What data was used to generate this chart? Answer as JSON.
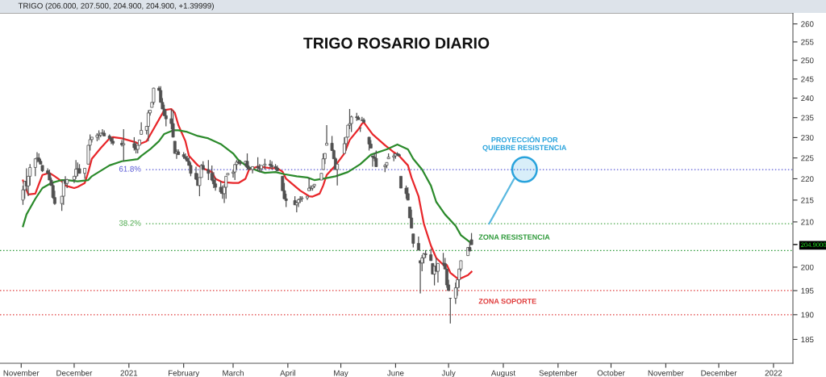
{
  "chart_data": {
    "type": "candlestick",
    "title": "TRIGO ROSARIO DIARIO",
    "subtitle": "TRIGO (206.000, 207.500, 204.900, 204.900, +1.39999)",
    "color": "#505050",
    "x": [
      "2020-11-02",
      "2020-11-03",
      "2020-11-04",
      "2020-11-05",
      "2020-11-06",
      "2020-11-09",
      "2020-11-10",
      "2020-11-11",
      "2020-11-12",
      "2020-11-13",
      "2020-11-16",
      "2020-11-17",
      "2020-11-18",
      "2020-11-19",
      "2020-11-20",
      "2020-11-24",
      "2020-11-25",
      "2020-11-26",
      "2020-11-27",
      "2020-12-01",
      "2020-12-02",
      "2020-12-03",
      "2020-12-04",
      "2020-12-07",
      "2020-12-09",
      "2020-12-10",
      "2020-12-11",
      "2020-12-14",
      "2020-12-15",
      "2020-12-16",
      "2020-12-17",
      "2020-12-18",
      "2020-12-21",
      "2020-12-22",
      "2020-12-23",
      "2020-12-28",
      "2020-12-29",
      "2021-01-04",
      "2021-01-05",
      "2021-01-06",
      "2021-01-07",
      "2021-01-08",
      "2021-01-11",
      "2021-01-12",
      "2021-01-13",
      "2021-01-14",
      "2021-01-15",
      "2021-01-18",
      "2021-01-19",
      "2021-01-20",
      "2021-01-21",
      "2021-01-22",
      "2021-01-25",
      "2021-01-26",
      "2021-01-27",
      "2021-01-28",
      "2021-01-29",
      "2021-02-01",
      "2021-02-02",
      "2021-02-03",
      "2021-02-04",
      "2021-02-05",
      "2021-02-08",
      "2021-02-09",
      "2021-02-10",
      "2021-02-11",
      "2021-02-12",
      "2021-02-15",
      "2021-02-17",
      "2021-02-18",
      "2021-02-19",
      "2021-02-22",
      "2021-02-23",
      "2021-02-24",
      "2021-02-25",
      "2021-02-26",
      "2021-03-01",
      "2021-03-02",
      "2021-03-03",
      "2021-03-04",
      "2021-03-05",
      "2021-03-08",
      "2021-03-09",
      "2021-03-10",
      "2021-03-12",
      "2021-03-15",
      "2021-03-16",
      "2021-03-17",
      "2021-03-19",
      "2021-03-22",
      "2021-03-23",
      "2021-03-25",
      "2021-03-26",
      "2021-03-29",
      "2021-03-30",
      "2021-03-31",
      "2021-04-05",
      "2021-04-06",
      "2021-04-07",
      "2021-04-08",
      "2021-04-09",
      "2021-04-12",
      "2021-04-13",
      "2021-04-14",
      "2021-04-15",
      "2021-04-16",
      "2021-04-20",
      "2021-04-21",
      "2021-04-22",
      "2021-04-23",
      "2021-04-26",
      "2021-04-27",
      "2021-04-28",
      "2021-04-29",
      "2021-05-03",
      "2021-05-04",
      "2021-05-05",
      "2021-05-06",
      "2021-05-07",
      "2021-05-10",
      "2021-05-11",
      "2021-05-12",
      "2021-05-13",
      "2021-05-14",
      "2021-05-17",
      "2021-05-18",
      "2021-05-19",
      "2021-05-20",
      "2021-05-21",
      "2021-05-26",
      "2021-05-27",
      "2021-05-28",
      "2021-05-31",
      "2021-06-01",
      "2021-06-02",
      "2021-06-03",
      "2021-06-04",
      "2021-06-07",
      "2021-06-08",
      "2021-06-09",
      "2021-06-10",
      "2021-06-11",
      "2021-06-14",
      "2021-06-15",
      "2021-06-16",
      "2021-06-17",
      "2021-06-18",
      "2021-06-21",
      "2021-06-22",
      "2021-06-23",
      "2021-06-24",
      "2021-06-25",
      "2021-06-28",
      "2021-06-29",
      "2021-06-30",
      "2021-07-01",
      "2021-07-02",
      "2021-07-05",
      "2021-07-06",
      "2021-07-07",
      "2021-07-08",
      "2021-07-12",
      "2021-07-13",
      "2021-07-14"
    ],
    "ohlc": [
      [
        215.0,
        218.4,
        213.9,
        217.4
      ],
      [
        217.4,
        219.4,
        215.3,
        219.4
      ],
      [
        219.4,
        222.5,
        217.2,
        218.3
      ],
      [
        218.3,
        220.6,
        215.9,
        220.6
      ],
      [
        220.6,
        223.5,
        218.4,
        222.7
      ],
      [
        222.7,
        224.8,
        220.6,
        224.8
      ],
      [
        224.8,
        226.4,
        223.9,
        225.0
      ],
      [
        225.0,
        226.1,
        223.9,
        224.2
      ],
      [
        224.2,
        224.8,
        223.5,
        223.5
      ],
      [
        223.2,
        223.2,
        221.6,
        221.9
      ],
      [
        221.9,
        222.5,
        221.3,
        221.3
      ],
      [
        221.3,
        222.2,
        219.7,
        219.7
      ],
      [
        219.7,
        220.3,
        218.4,
        218.4
      ],
      [
        218.4,
        219.0,
        215.3,
        215.6
      ],
      [
        215.6,
        217.2,
        213.9,
        214.2
      ],
      [
        214.2,
        215.9,
        212.5,
        215.9
      ],
      [
        215.9,
        219.7,
        213.9,
        219.5
      ],
      [
        219.5,
        220.6,
        218.4,
        218.9
      ],
      [
        218.9,
        220.0,
        217.8,
        219.8
      ],
      [
        219.8,
        220.6,
        219.0,
        220.6
      ],
      [
        220.6,
        224.5,
        220.0,
        222.3
      ],
      [
        222.3,
        223.9,
        220.6,
        222.4
      ],
      [
        222.4,
        223.5,
        221.3,
        221.3
      ],
      [
        221.3,
        222.5,
        220.0,
        222.5
      ],
      [
        223.5,
        228.1,
        223.5,
        228.1
      ],
      [
        228.1,
        230.8,
        226.8,
        229.5
      ],
      [
        229.5,
        230.1,
        228.8,
        230.1
      ],
      [
        230.1,
        231.1,
        229.1,
        230.6
      ],
      [
        230.6,
        231.8,
        229.4,
        230.6
      ],
      [
        230.6,
        231.1,
        230.1,
        231.1
      ],
      [
        231.1,
        232.1,
        231.1,
        231.1
      ],
      [
        231.1,
        231.8,
        230.4,
        230.4
      ],
      [
        230.4,
        230.8,
        229.8,
        229.8
      ],
      [
        229.8,
        230.1,
        228.4,
        229.1
      ],
      [
        229.1,
        230.1,
        228.1,
        228.6
      ],
      [
        228.6,
        229.4,
        227.8,
        228.2
      ],
      [
        228.2,
        232.1,
        224.2,
        228.5
      ],
      [
        228.5,
        230.1,
        226.8,
        227.5
      ],
      [
        227.5,
        228.8,
        226.1,
        227.1
      ],
      [
        227.1,
        228.1,
        226.1,
        228.1
      ],
      [
        228.1,
        229.4,
        228.1,
        229.4
      ],
      [
        230.8,
        233.8,
        230.8,
        231.8
      ],
      [
        231.8,
        232.8,
        230.8,
        232.8
      ],
      [
        232.8,
        236.9,
        229.1,
        236.2
      ],
      [
        236.2,
        236.9,
        235.5,
        236.9
      ],
      [
        237.6,
        238.9,
        237.6,
        238.9
      ],
      [
        238.9,
        242.7,
        238.3,
        242.6
      ],
      [
        242.6,
        243.1,
        242.0,
        242.0
      ],
      [
        242.0,
        243.1,
        238.9,
        238.9
      ],
      [
        238.9,
        240.0,
        237.2,
        237.2
      ],
      [
        237.2,
        238.3,
        235.5,
        235.5
      ],
      [
        235.5,
        236.9,
        232.8,
        234.7
      ],
      [
        234.7,
        237.2,
        232.1,
        233.5
      ],
      [
        233.5,
        236.9,
        230.1,
        230.1
      ],
      [
        229.1,
        229.1,
        226.1,
        226.1
      ],
      [
        226.1,
        227.1,
        224.8,
        226.5
      ],
      [
        226.5,
        227.1,
        225.8,
        225.8
      ],
      [
        225.8,
        226.4,
        224.8,
        225.3
      ],
      [
        225.3,
        226.1,
        224.5,
        224.9
      ],
      [
        224.9,
        225.5,
        224.2,
        224.2
      ],
      [
        224.2,
        225.2,
        223.2,
        223.2
      ],
      [
        223.2,
        223.9,
        220.6,
        221.3
      ],
      [
        221.3,
        222.9,
        219.7,
        219.9
      ],
      [
        219.9,
        221.3,
        218.4,
        218.4
      ],
      [
        218.4,
        220.3,
        215.9,
        220.3
      ],
      [
        220.3,
        223.5,
        220.3,
        223.2
      ],
      [
        223.2,
        224.2,
        222.2,
        222.2
      ],
      [
        222.2,
        224.5,
        219.7,
        221.3
      ],
      [
        221.3,
        223.2,
        219.4,
        219.7
      ],
      [
        219.7,
        221.6,
        217.8,
        218.8
      ],
      [
        218.8,
        220.3,
        217.2,
        218.0
      ],
      [
        218.0,
        219.4,
        216.5,
        216.9
      ],
      [
        216.9,
        218.4,
        215.3,
        216.5
      ],
      [
        216.5,
        218.7,
        214.3,
        218.0
      ],
      [
        218.0,
        220.6,
        215.3,
        220.6
      ],
      [
        220.9,
        221.3,
        220.9,
        221.3
      ],
      [
        221.3,
        222.2,
        220.3,
        221.6
      ],
      [
        221.6,
        223.5,
        219.7,
        223.4
      ],
      [
        223.4,
        224.5,
        222.2,
        224.0
      ],
      [
        224.0,
        224.5,
        223.5,
        223.9
      ],
      [
        223.9,
        224.5,
        223.2,
        223.6
      ],
      [
        223.6,
        224.2,
        222.9,
        224.2
      ],
      [
        224.2,
        226.1,
        222.2,
        222.7
      ],
      [
        222.7,
        223.2,
        222.2,
        222.2
      ],
      [
        222.2,
        222.9,
        221.3,
        222.9
      ],
      [
        222.9,
        225.2,
        221.9,
        222.6
      ],
      [
        222.6,
        223.5,
        221.6,
        222.4
      ],
      [
        222.4,
        223.2,
        221.6,
        223.2
      ],
      [
        223.2,
        224.8,
        222.2,
        223.5
      ],
      [
        223.5,
        224.5,
        222.5,
        223.2
      ],
      [
        223.2,
        224.2,
        222.2,
        222.9
      ],
      [
        222.9,
        223.5,
        222.2,
        222.6
      ],
      [
        222.6,
        223.2,
        221.9,
        221.9
      ],
      [
        220.6,
        220.6,
        217.2,
        217.2
      ],
      [
        217.2,
        219.0,
        215.3,
        215.3
      ],
      [
        215.3,
        216.5,
        213.4,
        214.9
      ],
      [
        214.9,
        215.9,
        213.9,
        213.9
      ],
      [
        213.9,
        214.6,
        212.2,
        214.4
      ],
      [
        214.4,
        215.3,
        213.4,
        215.1
      ],
      [
        215.1,
        215.9,
        214.3,
        215.3
      ],
      [
        215.3,
        215.9,
        214.6,
        215.5
      ],
      [
        215.5,
        215.9,
        215.0,
        215.9
      ],
      [
        217.2,
        220.3,
        217.2,
        217.8
      ],
      [
        217.8,
        218.4,
        217.2,
        217.8
      ],
      [
        217.8,
        218.4,
        217.2,
        218.3
      ],
      [
        218.3,
        218.7,
        217.8,
        218.7
      ],
      [
        219.7,
        221.3,
        219.7,
        221.3
      ],
      [
        222.2,
        226.1,
        222.2,
        224.8
      ],
      [
        224.8,
        226.1,
        223.5,
        226.1
      ],
      [
        228.1,
        233.1,
        228.1,
        228.6
      ],
      [
        228.6,
        230.4,
        226.8,
        226.8
      ],
      [
        226.8,
        227.1,
        224.8,
        224.8
      ],
      [
        224.8,
        225.2,
        222.2,
        222.2
      ],
      [
        222.2,
        223.5,
        218.4,
        223.5
      ],
      [
        226.1,
        230.1,
        226.1,
        228.5
      ],
      [
        228.5,
        230.1,
        226.8,
        230.1
      ],
      [
        230.1,
        233.1,
        230.1,
        233.1
      ],
      [
        233.1,
        237.2,
        232.1,
        233.5
      ],
      [
        233.5,
        235.5,
        231.4,
        235.2
      ],
      [
        235.2,
        236.2,
        234.2,
        235.0
      ],
      [
        235.0,
        235.5,
        234.5,
        234.5
      ],
      [
        232.4,
        232.4,
        231.4,
        232.4
      ],
      [
        234.2,
        235.2,
        234.2,
        234.4
      ],
      [
        234.4,
        234.9,
        233.8,
        233.8
      ],
      [
        230.1,
        230.1,
        226.8,
        228.4
      ],
      [
        228.4,
        229.4,
        227.4,
        227.4
      ],
      [
        225.5,
        225.5,
        222.9,
        225.2
      ],
      [
        225.2,
        226.1,
        224.2,
        224.9
      ],
      [
        224.9,
        226.8,
        222.9,
        222.9
      ],
      [
        222.9,
        223.5,
        221.6,
        223.2
      ],
      [
        223.2,
        223.9,
        222.5,
        223.9
      ],
      [
        224.8,
        226.1,
        224.8,
        225.2
      ],
      [
        225.2,
        226.1,
        224.2,
        225.5
      ],
      [
        225.5,
        226.1,
        224.8,
        226.0
      ],
      [
        226.0,
        226.4,
        225.5,
        225.8
      ],
      [
        225.8,
        226.1,
        225.5,
        225.5
      ],
      [
        220.6,
        220.6,
        217.8,
        217.8
      ],
      [
        217.8,
        218.4,
        215.3,
        216.5
      ],
      [
        216.5,
        218.0,
        215.0,
        215.0
      ],
      [
        213.4,
        213.4,
        210.9,
        210.9
      ],
      [
        210.9,
        212.8,
        208.6,
        208.6
      ],
      [
        207.3,
        207.3,
        204.3,
        205.2
      ],
      [
        205.2,
        206.7,
        203.7,
        203.7
      ],
      [
        201.4,
        201.4,
        194.4,
        200.9
      ],
      [
        200.9,
        202.6,
        199.1,
        202.0
      ],
      [
        202.0,
        203.1,
        200.8,
        202.9
      ],
      [
        202.9,
        203.7,
        202.0,
        202.7
      ],
      [
        202.7,
        204.0,
        201.4,
        201.4
      ],
      [
        200.8,
        200.8,
        198.5,
        198.5
      ],
      [
        198.5,
        200.2,
        196.1,
        200.2
      ],
      [
        200.2,
        202.0,
        199.1,
        199.1
      ],
      [
        199.1,
        200.8,
        196.7,
        200.8
      ],
      [
        200.8,
        203.1,
        200.2,
        200.8
      ],
      [
        200.8,
        202.0,
        199.6,
        199.6
      ],
      [
        199.6,
        199.6,
        195.6,
        196.2
      ],
      [
        196.2,
        197.3,
        195.0,
        195.0
      ],
      [
        193.4,
        193.4,
        188.2,
        193.4
      ],
      [
        193.4,
        196.7,
        192.2,
        195.6
      ],
      [
        195.6,
        197.3,
        193.9,
        197.3
      ],
      [
        197.3,
        199.6,
        195.6,
        199.6
      ],
      [
        199.6,
        201.4,
        199.1,
        201.4
      ],
      [
        202.5,
        204.3,
        202.5,
        204.3
      ],
      [
        204.3,
        205.5,
        203.5,
        203.5
      ],
      [
        206.0,
        207.5,
        204.9,
        204.9
      ]
    ],
    "series": [
      {
        "type": "line",
        "color": "#e8262a",
        "x": [
          "2020-11-02",
          "2020-11-03",
          "2020-11-05",
          "2020-11-09",
          "2020-11-11",
          "2020-11-13",
          "2020-11-17",
          "2020-11-20",
          "2020-11-24",
          "2020-11-26",
          "2020-12-01",
          "2020-12-03",
          "2020-12-07",
          "2020-12-09",
          "2020-12-11",
          "2020-12-16",
          "2020-12-21",
          "2020-12-23",
          "2020-12-28",
          "2021-01-05",
          "2021-01-07",
          "2021-01-11",
          "2021-01-14",
          "2021-01-18",
          "2021-01-21",
          "2021-01-25",
          "2021-01-27",
          "2021-01-29",
          "2021-02-02",
          "2021-02-04",
          "2021-02-09",
          "2021-02-12",
          "2021-02-17",
          "2021-02-19",
          "2021-02-23",
          "2021-03-01",
          "2021-03-04",
          "2021-03-08",
          "2021-03-10",
          "2021-03-15",
          "2021-03-19",
          "2021-03-23",
          "2021-03-26",
          "2021-03-29",
          "2021-03-31",
          "2021-04-08",
          "2021-04-13",
          "2021-04-15",
          "2021-04-19",
          "2021-04-21",
          "2021-04-23",
          "2021-04-28",
          "2021-05-03",
          "2021-05-06",
          "2021-05-11",
          "2021-05-13",
          "2021-05-14",
          "2021-05-19",
          "2021-05-26",
          "2021-05-31",
          "2021-06-03",
          "2021-06-08",
          "2021-06-10",
          "2021-06-14",
          "2021-06-17",
          "2021-06-21",
          "2021-06-24",
          "2021-06-28",
          "2021-06-30",
          "2021-07-02",
          "2021-07-06",
          "2021-07-08",
          "2021-07-12",
          "2021-07-14"
        ],
        "values": [
          219.6,
          218.4,
          216.3,
          216.5,
          218.7,
          220.9,
          221.4,
          220.6,
          219.4,
          218.4,
          217.8,
          218.1,
          219.0,
          221.6,
          224.8,
          227.4,
          229.8,
          230.1,
          229.8,
          228.8,
          228.4,
          229.1,
          231.4,
          234.5,
          236.9,
          237.2,
          236.2,
          233.1,
          229.1,
          225.5,
          223.2,
          222.5,
          221.6,
          220.0,
          219.2,
          219.0,
          219.0,
          220.0,
          222.2,
          222.9,
          222.7,
          222.5,
          222.5,
          221.7,
          220.0,
          217.2,
          215.9,
          215.8,
          216.5,
          218.4,
          220.9,
          223.2,
          226.1,
          229.4,
          232.1,
          233.5,
          233.8,
          230.8,
          228.1,
          226.4,
          225.5,
          223.2,
          220.3,
          215.9,
          209.6,
          204.7,
          202.0,
          200.5,
          200.5,
          198.8,
          197.6,
          197.6,
          198.3,
          199.0
        ]
      },
      {
        "type": "line",
        "color": "#2b8a2b",
        "x": [
          "2020-11-02",
          "2020-11-04",
          "2020-11-09",
          "2020-11-13",
          "2020-11-18",
          "2020-11-24",
          "2020-11-27",
          "2020-12-03",
          "2020-12-09",
          "2020-12-11",
          "2020-12-16",
          "2020-12-21",
          "2020-12-28",
          "2021-01-06",
          "2021-01-08",
          "2021-01-13",
          "2021-01-18",
          "2021-01-21",
          "2021-01-26",
          "2021-01-29",
          "2021-02-03",
          "2021-02-09",
          "2021-02-15",
          "2021-02-22",
          "2021-03-01",
          "2021-03-04",
          "2021-03-09",
          "2021-03-15",
          "2021-03-19",
          "2021-03-25",
          "2021-03-30",
          "2021-04-06",
          "2021-04-12",
          "2021-04-16",
          "2021-04-21",
          "2021-04-28",
          "2021-05-05",
          "2021-05-12",
          "2021-05-18",
          "2021-05-27",
          "2021-06-02",
          "2021-06-08",
          "2021-06-11",
          "2021-06-16",
          "2021-06-21",
          "2021-06-24",
          "2021-06-29",
          "2021-07-05",
          "2021-07-08",
          "2021-07-14"
        ],
        "values": [
          209.0,
          211.7,
          215.3,
          217.8,
          219.0,
          219.7,
          219.7,
          219.4,
          219.7,
          220.6,
          221.9,
          223.2,
          224.2,
          224.7,
          225.5,
          227.1,
          229.1,
          230.9,
          231.8,
          231.8,
          231.4,
          230.4,
          229.8,
          228.4,
          226.1,
          224.5,
          222.9,
          221.9,
          221.4,
          221.6,
          221.1,
          220.6,
          220.3,
          219.7,
          220.0,
          220.6,
          221.6,
          223.5,
          225.8,
          227.1,
          228.3,
          227.1,
          224.8,
          222.2,
          218.4,
          214.6,
          211.7,
          209.1,
          207.0,
          205.2
        ]
      },
      {
        "type": "line",
        "color": "#5ab8e0",
        "x": [
          "2021-07-24",
          "2021-08-07"
        ],
        "values": [
          209.6,
          219.9
        ]
      },
      {
        "type": "scatter",
        "name": "PROYECCIÓN POR\nQUIEBRE RESISTENCIA",
        "color": "#29a3dc",
        "marker": "circle",
        "x": [
          "2021-08-13"
        ],
        "values": [
          222.2
        ]
      }
    ],
    "xlim": [
      "2020-10-20",
      "2022-01-12"
    ],
    "xticks": [
      {
        "value": "2020-11-01",
        "label": "November"
      },
      {
        "value": "2020-12-01",
        "label": "December"
      },
      {
        "value": "2021-01-01",
        "label": "2021"
      },
      {
        "value": "2021-02-01",
        "label": "February"
      },
      {
        "value": "2021-03-01",
        "label": "March"
      },
      {
        "value": "2021-04-01",
        "label": "April"
      },
      {
        "value": "2021-05-01",
        "label": "May"
      },
      {
        "value": "2021-06-01",
        "label": "June"
      },
      {
        "value": "2021-07-01",
        "label": "July"
      },
      {
        "value": "2021-08-01",
        "label": "August"
      },
      {
        "value": "2021-09-01",
        "label": "September"
      },
      {
        "value": "2021-10-01",
        "label": "October"
      },
      {
        "value": "2021-11-01",
        "label": "November"
      },
      {
        "value": "2021-12-01",
        "label": "December"
      },
      {
        "value": "2022-01-01",
        "label": "2022"
      }
    ],
    "log": true,
    "ylim": [
      180.3,
      263.1
    ],
    "yticks": [
      185,
      190,
      195,
      200,
      {
        "value": 204.9,
        "label": "204.9000"
      },
      {
        "value": 205,
        "label": null
      },
      210,
      215,
      220,
      225,
      230,
      235,
      240,
      245,
      250,
      255,
      260
    ],
    "ref_lines": [
      {
        "axis": "y",
        "value": 222.2,
        "color": "#5b5bd6",
        "line_style": "dotted"
      },
      {
        "axis": "y",
        "value": 209.6,
        "color": "#4aa84a",
        "line_style": "dotted"
      },
      {
        "axis": "y",
        "value": 203.6,
        "label": "ZONA RESISTENCIA",
        "color": "#2e9a3a",
        "line_style": "dotted"
      },
      {
        "axis": "y",
        "value": 195,
        "color": "#e03c3c",
        "line_style": "dotted"
      },
      {
        "axis": "y",
        "value": 190,
        "label": "ZONA SOPORTE",
        "color": "#e03c3c",
        "line_style": "dotted"
      }
    ],
    "annotations": [
      "61.8%",
      "38.2%"
    ]
  }
}
